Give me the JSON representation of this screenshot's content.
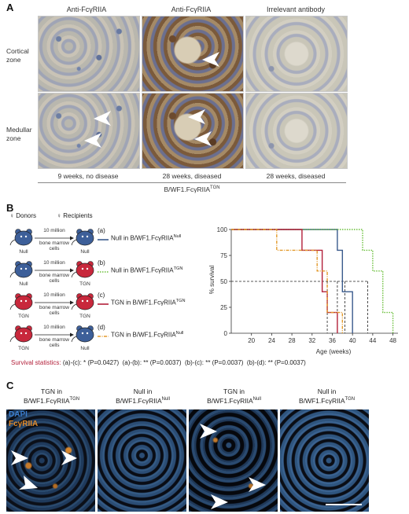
{
  "panelA": {
    "letter": "A",
    "columns": [
      "Anti-FcγRIIA",
      "Anti-FcγRIIA",
      "Irrelevant antibody"
    ],
    "rows": [
      "Cortical\nzone",
      "Medullar\nzone"
    ],
    "captions": [
      "9 weeks, no disease",
      "28 weeks, diseased",
      "28 weeks, diseased"
    ],
    "strain": "B/WF1.FcγRIIA",
    "strain_sup": "TGN"
  },
  "panelB": {
    "letter": "B",
    "donors_label": "♀ Donors",
    "recipients_label": "♀ Recipients",
    "transfer_amount": "10 million",
    "transfer_cells": "bone marrow\ncells",
    "groups": [
      {
        "tag": "(a)",
        "donor": "Null",
        "recipient": "Null",
        "label": "Null in B/WF1.FcγRIIA",
        "sup": "Null",
        "color": "#3a5a8c",
        "dash": "solid",
        "donor_color": "#3d5f99",
        "recipient_color": "#3d5f99"
      },
      {
        "tag": "(b)",
        "donor": "Null",
        "recipient": "TGN",
        "label": "Null in B/WF1.FcγRIIA",
        "sup": "TGN",
        "color": "#6abf3a",
        "dash": "dotted",
        "donor_color": "#3d5f99",
        "recipient_color": "#c8283c"
      },
      {
        "tag": "(c)",
        "donor": "TGN",
        "recipient": "TGN",
        "label": "TGN in B/WF1.FcγRIIA",
        "sup": "TGN",
        "color": "#b3203a",
        "dash": "solid",
        "donor_color": "#c8283c",
        "recipient_color": "#c8283c"
      },
      {
        "tag": "(d)",
        "donor": "TGN",
        "recipient": "Null",
        "label": "TGN in B/WF1.FcγRIIA",
        "sup": "Null",
        "color": "#e39a2c",
        "dash": "dashdot",
        "donor_color": "#c8283c",
        "recipient_color": "#3d5f99"
      }
    ],
    "statistics_label": "Survival statistics:",
    "statistics": [
      "(a)-(c): * (P=0.0427)",
      "(a)-(b): ** (P=0.0037)",
      "(b)-(c): ** (P=0.0037)",
      "(b)-(d): ** (P=0.0037)"
    ]
  },
  "chart_data": {
    "type": "line",
    "step": true,
    "xlabel": "Age (weeks)",
    "ylabel": "% survival",
    "xlim": [
      16,
      49
    ],
    "ylim": [
      0,
      100
    ],
    "xticks": [
      20,
      24,
      28,
      32,
      36,
      40,
      44,
      48
    ],
    "yticks": [
      0,
      25,
      50,
      75,
      100
    ],
    "reference_line_y": 50,
    "median_markers_x": [
      35,
      37,
      38.5,
      43
    ],
    "series": [
      {
        "key": "a",
        "color": "#3a5a8c",
        "dash": "solid",
        "x": [
          16,
          37,
          37,
          38,
          38,
          40,
          40
        ],
        "y": [
          100,
          100,
          80,
          80,
          40,
          40,
          0
        ]
      },
      {
        "key": "b",
        "color": "#6abf3a",
        "dash": "dotted",
        "x": [
          16,
          42,
          42,
          44,
          44,
          46,
          46,
          48,
          48
        ],
        "y": [
          100,
          100,
          80,
          80,
          60,
          60,
          20,
          20,
          0
        ]
      },
      {
        "key": "c",
        "color": "#b3203a",
        "dash": "solid",
        "x": [
          16,
          30,
          30,
          34,
          34,
          35,
          35,
          37,
          37
        ],
        "y": [
          100,
          100,
          80,
          80,
          40,
          40,
          20,
          20,
          0
        ]
      },
      {
        "key": "d",
        "color": "#e39a2c",
        "dash": "dashdot",
        "x": [
          16,
          25,
          25,
          33,
          33,
          35,
          35,
          38,
          38
        ],
        "y": [
          100,
          100,
          80,
          80,
          60,
          60,
          20,
          20,
          0
        ]
      }
    ]
  },
  "panelC": {
    "letter": "C",
    "titles": [
      {
        "line1": "TGN in",
        "line2": "B/WF1.FcγRIIA",
        "sup": "TGN"
      },
      {
        "line1": "Null in",
        "line2": "B/WF1.FcγRIIA",
        "sup": "Null"
      },
      {
        "line1": "TGN in",
        "line2": "B/WF1.FcγRIIA",
        "sup": "Null"
      },
      {
        "line1": "Null in",
        "line2": "B/WF1.FcγRIIA",
        "sup": "TGN"
      }
    ],
    "stain_dapi": "DAPI",
    "stain_fc": "FcγRIIA",
    "dapi_color": "#3b7fd1",
    "fc_color": "#e08a2a"
  }
}
